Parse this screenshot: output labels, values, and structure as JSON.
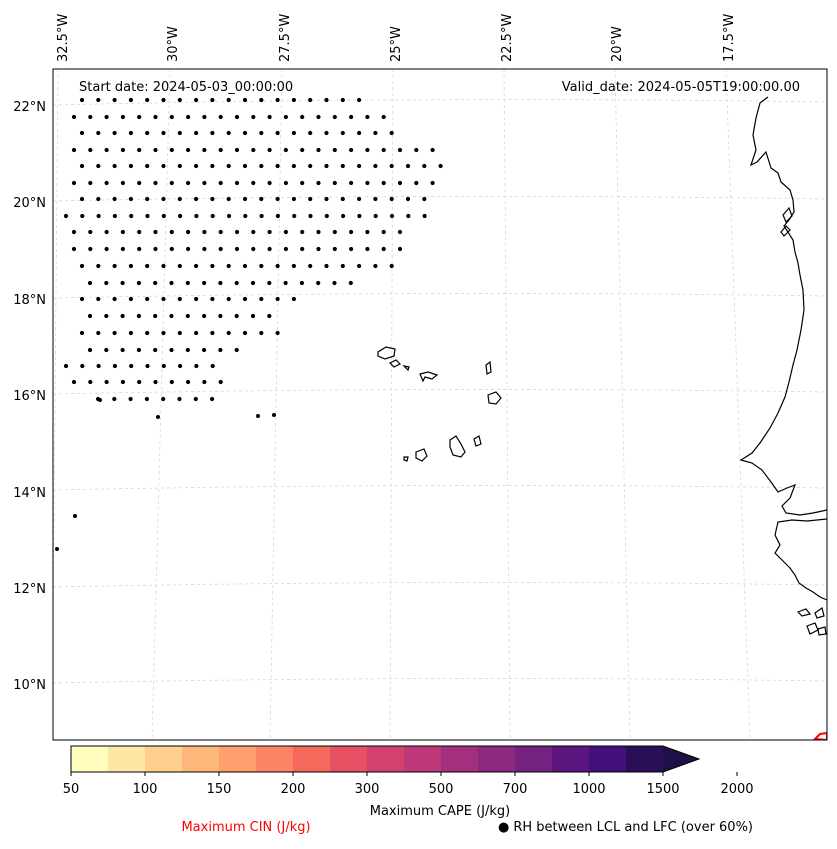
{
  "map": {
    "start_label": "Start date: 2024-05-03_00:00:00",
    "valid_label": "Valid_date: 2024-05-05T19:00:00.00",
    "lon_ticks": [
      "32.5°W",
      "30°W",
      "27.5°W",
      "25°W",
      "22.5°W",
      "20°W",
      "17.5°W"
    ],
    "lat_ticks": [
      "22°N",
      "20°N",
      "18°N",
      "16°N",
      "14°N",
      "12°N",
      "10°N"
    ],
    "gridlines": true
  },
  "colorbar": {
    "colors": [
      "#fffdbd",
      "#fee7a4",
      "#fecf8e",
      "#feb77b",
      "#fe9f6d",
      "#fa8463",
      "#f4695c",
      "#e55163",
      "#d3426e",
      "#bc3878",
      "#a52f7f",
      "#8c2981",
      "#74217f",
      "#5c167f",
      "#42107a",
      "#2a0f57",
      "#1d1147"
    ],
    "tick_labels": [
      "50",
      "100",
      "150",
      "200",
      "300",
      "500",
      "700",
      "1000",
      "1500",
      "2000"
    ],
    "label": "Maximum CAPE (J/kg)"
  },
  "legend": {
    "cin_label": "Maximum CIN (J/kg)",
    "cin_color": "#ff0000",
    "rh_symbol": "●",
    "rh_label": "RH between LCL and LFC (over 60%)"
  }
}
